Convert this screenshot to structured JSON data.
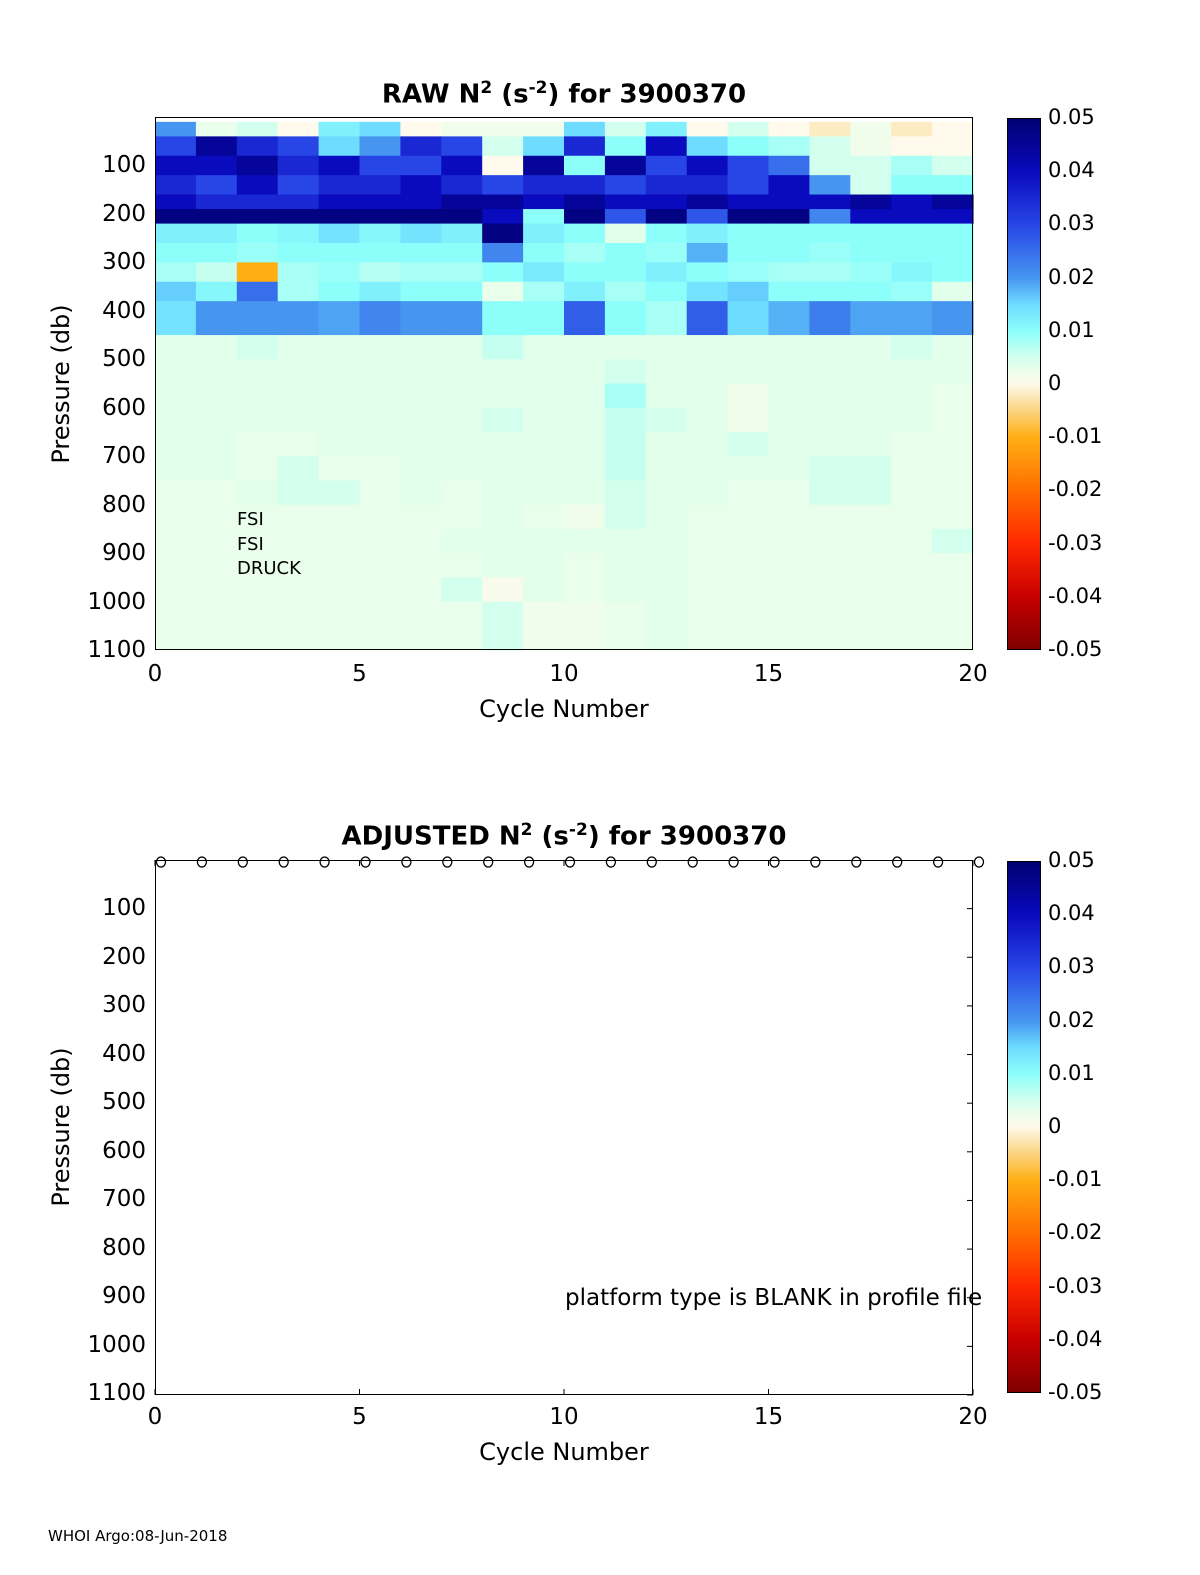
{
  "chart_data": [
    {
      "type": "heatmap",
      "title_main": "RAW N",
      "title_sup1": "2",
      "title_mid": " (s",
      "title_sup2": "-2",
      "title_end": ") for 3900370",
      "xlabel": "Cycle Number",
      "ylabel": "Pressure (db)",
      "xlim": [
        0,
        20
      ],
      "ylim": [
        1100,
        0
      ],
      "xticks": [
        "0",
        "5",
        "10",
        "15",
        "20"
      ],
      "yticks": [
        "100",
        "200",
        "300",
        "400",
        "500",
        "600",
        "700",
        "800",
        "900",
        "1000",
        "1100"
      ],
      "colorbar": {
        "range": [
          -0.05,
          0.05
        ],
        "ticks": [
          "0.05",
          "0.04",
          "0.03",
          "0.02",
          "0.01",
          "0",
          "-0.01",
          "-0.02",
          "-0.03",
          "-0.04",
          "-0.05"
        ]
      },
      "annotations": [
        "FSI",
        "FSI",
        "DRUCK"
      ],
      "pressure_bins": [
        [
          10,
          40
        ],
        [
          40,
          80
        ],
        [
          80,
          120
        ],
        [
          120,
          160
        ],
        [
          160,
          190
        ],
        [
          190,
          220
        ],
        [
          220,
          260
        ],
        [
          260,
          300
        ],
        [
          300,
          340
        ],
        [
          340,
          380
        ],
        [
          380,
          450
        ],
        [
          450,
          500
        ],
        [
          500,
          550
        ],
        [
          550,
          600
        ],
        [
          600,
          650
        ],
        [
          650,
          700
        ],
        [
          700,
          750
        ],
        [
          750,
          800
        ],
        [
          800,
          850
        ],
        [
          850,
          900
        ],
        [
          900,
          950
        ],
        [
          950,
          1000
        ],
        [
          1000,
          1100
        ]
      ],
      "values": [
        [
          0.02,
          0.003,
          0.005,
          0.0,
          0.012,
          0.015,
          0.0,
          0.002,
          0.002,
          0.002,
          0.015,
          0.005,
          0.012,
          0.0,
          0.005,
          0.0,
          -0.002,
          0.002,
          -0.002,
          0.0
        ],
        [
          0.03,
          0.045,
          0.035,
          0.03,
          0.015,
          0.02,
          0.035,
          0.03,
          0.005,
          0.015,
          0.035,
          0.01,
          0.04,
          0.015,
          0.01,
          0.008,
          0.005,
          0.002,
          0.0,
          0.0
        ],
        [
          0.04,
          0.04,
          0.045,
          0.035,
          0.04,
          0.03,
          0.03,
          0.04,
          0.0,
          0.045,
          0.01,
          0.045,
          0.03,
          0.04,
          0.03,
          0.025,
          0.005,
          0.005,
          0.008,
          0.005
        ],
        [
          0.035,
          0.03,
          0.04,
          0.03,
          0.035,
          0.035,
          0.04,
          0.035,
          0.03,
          0.035,
          0.035,
          0.03,
          0.035,
          0.035,
          0.03,
          0.04,
          0.02,
          0.005,
          0.01,
          0.01
        ],
        [
          0.04,
          0.035,
          0.035,
          0.035,
          0.04,
          0.04,
          0.04,
          0.045,
          0.045,
          0.04,
          0.045,
          0.04,
          0.04,
          0.045,
          0.04,
          0.04,
          0.04,
          0.045,
          0.04,
          0.045
        ],
        [
          0.048,
          0.048,
          0.048,
          0.048,
          0.048,
          0.048,
          0.048,
          0.048,
          0.04,
          0.01,
          0.048,
          0.028,
          0.048,
          0.028,
          0.048,
          0.048,
          0.022,
          0.04,
          0.04,
          0.04
        ],
        [
          0.012,
          0.012,
          0.01,
          0.011,
          0.014,
          0.011,
          0.014,
          0.012,
          0.048,
          0.012,
          0.01,
          0.004,
          0.01,
          0.012,
          0.01,
          0.01,
          0.01,
          0.01,
          0.01,
          0.01
        ],
        [
          0.01,
          0.01,
          0.009,
          0.01,
          0.01,
          0.01,
          0.01,
          0.01,
          0.022,
          0.01,
          0.008,
          0.01,
          0.009,
          0.018,
          0.01,
          0.01,
          0.009,
          0.01,
          0.01,
          0.01
        ],
        [
          0.008,
          0.006,
          -0.01,
          0.008,
          0.009,
          0.007,
          0.008,
          0.008,
          0.01,
          0.013,
          0.01,
          0.01,
          0.012,
          0.01,
          0.009,
          0.008,
          0.008,
          0.009,
          0.011,
          0.01
        ],
        [
          0.016,
          0.011,
          0.025,
          0.008,
          0.01,
          0.012,
          0.01,
          0.01,
          0.003,
          0.008,
          0.012,
          0.008,
          0.01,
          0.014,
          0.016,
          0.01,
          0.01,
          0.01,
          0.009,
          0.004
        ],
        [
          0.014,
          0.02,
          0.02,
          0.02,
          0.019,
          0.022,
          0.02,
          0.02,
          0.01,
          0.01,
          0.027,
          0.01,
          0.008,
          0.027,
          0.015,
          0.018,
          0.023,
          0.019,
          0.019,
          0.02
        ],
        [
          0.004,
          0.004,
          0.005,
          0.004,
          0.004,
          0.004,
          0.004,
          0.004,
          0.006,
          0.004,
          0.004,
          0.004,
          0.004,
          0.004,
          0.004,
          0.004,
          0.004,
          0.004,
          0.005,
          0.004
        ],
        [
          0.004,
          0.004,
          0.004,
          0.004,
          0.004,
          0.004,
          0.004,
          0.004,
          0.004,
          0.004,
          0.004,
          0.005,
          0.004,
          0.004,
          0.004,
          0.004,
          0.004,
          0.004,
          0.004,
          0.004
        ],
        [
          0.004,
          0.004,
          0.004,
          0.004,
          0.004,
          0.004,
          0.004,
          0.004,
          0.004,
          0.004,
          0.004,
          0.008,
          0.004,
          0.004,
          0.002,
          0.004,
          0.004,
          0.004,
          0.004,
          0.003
        ],
        [
          0.004,
          0.004,
          0.004,
          0.004,
          0.004,
          0.004,
          0.004,
          0.004,
          0.005,
          0.004,
          0.004,
          0.006,
          0.005,
          0.004,
          0.002,
          0.004,
          0.004,
          0.004,
          0.004,
          0.003
        ],
        [
          0.004,
          0.004,
          0.003,
          0.003,
          0.004,
          0.004,
          0.004,
          0.004,
          0.004,
          0.004,
          0.004,
          0.006,
          0.004,
          0.004,
          0.005,
          0.004,
          0.004,
          0.004,
          0.003,
          0.003
        ],
        [
          0.004,
          0.004,
          0.003,
          0.005,
          0.003,
          0.003,
          0.004,
          0.004,
          0.004,
          0.004,
          0.004,
          0.006,
          0.004,
          0.004,
          0.004,
          0.004,
          0.005,
          0.005,
          0.003,
          0.003
        ],
        [
          0.003,
          0.003,
          0.004,
          0.005,
          0.005,
          0.003,
          0.004,
          0.003,
          0.004,
          0.004,
          0.004,
          0.005,
          0.004,
          0.004,
          0.003,
          0.003,
          0.005,
          0.005,
          0.003,
          0.003
        ],
        [
          0.003,
          0.003,
          0.003,
          0.003,
          0.003,
          0.003,
          0.003,
          0.003,
          0.004,
          0.003,
          0.002,
          0.005,
          0.004,
          0.003,
          0.003,
          0.003,
          0.003,
          0.003,
          0.003,
          0.003
        ],
        [
          0.003,
          0.003,
          0.003,
          0.003,
          0.003,
          0.003,
          0.003,
          0.004,
          0.004,
          0.004,
          0.004,
          0.004,
          0.004,
          0.003,
          0.003,
          0.003,
          0.003,
          0.003,
          0.003,
          0.005
        ],
        [
          0.003,
          0.003,
          0.003,
          0.003,
          0.003,
          0.003,
          0.003,
          0.003,
          0.004,
          0.004,
          0.003,
          0.004,
          0.004,
          0.003,
          0.003,
          0.003,
          0.003,
          0.003,
          0.003,
          0.003
        ],
        [
          0.003,
          0.003,
          0.003,
          0.003,
          0.003,
          0.003,
          0.003,
          0.005,
          0.001,
          0.004,
          0.003,
          0.004,
          0.004,
          0.003,
          0.003,
          0.003,
          0.003,
          0.003,
          0.003,
          0.003
        ],
        [
          0.003,
          0.003,
          0.003,
          0.003,
          0.003,
          0.003,
          0.003,
          0.003,
          0.005,
          0.002,
          0.002,
          0.003,
          0.004,
          0.003,
          0.003,
          0.003,
          0.003,
          0.003,
          0.003,
          0.003
        ]
      ]
    },
    {
      "type": "heatmap",
      "title_main": "ADJUSTED N",
      "title_sup1": "2",
      "title_mid": " (s",
      "title_sup2": "-2",
      "title_end": ") for 3900370",
      "xlabel": "Cycle Number",
      "ylabel": "Pressure (db)",
      "xlim": [
        0,
        20
      ],
      "ylim": [
        1100,
        0
      ],
      "xticks": [
        "0",
        "5",
        "10",
        "15",
        "20"
      ],
      "yticks": [
        "100",
        "200",
        "300",
        "400",
        "500",
        "600",
        "700",
        "800",
        "900",
        "1000",
        "1100"
      ],
      "colorbar": {
        "range": [
          -0.05,
          0.05
        ],
        "ticks": [
          "0.05",
          "0.04",
          "0.03",
          "0.02",
          "0.01",
          "0",
          "-0.01",
          "-0.02",
          "-0.03",
          "-0.04",
          "-0.05"
        ]
      },
      "markers": {
        "symbol": "o",
        "pressure": 0,
        "cycles": [
          0,
          1,
          2,
          3,
          4,
          5,
          6,
          7,
          8,
          9,
          10,
          11,
          12,
          13,
          14,
          15,
          16,
          17,
          18,
          19,
          20
        ]
      },
      "note": "platform type is BLANK in profile file",
      "values": []
    }
  ],
  "footer": "WHOI Argo:08-Jun-2018"
}
